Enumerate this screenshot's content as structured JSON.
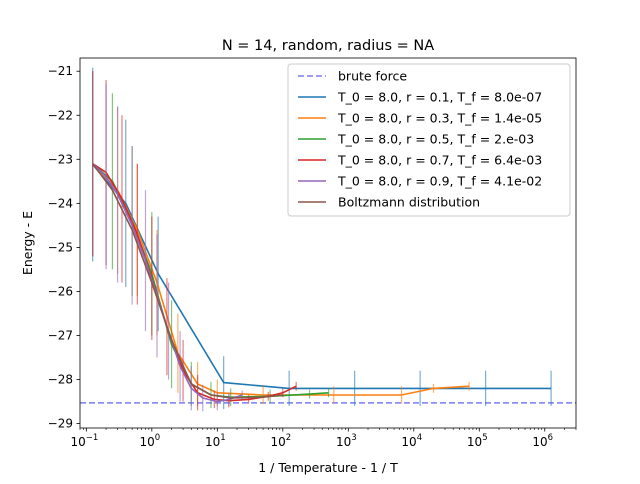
{
  "chart_data": {
    "type": "line",
    "title": "N = 14, random, radius = NA",
    "xlabel": "1 / Temperature - 1 / T",
    "ylabel": "Energy - E",
    "xscale": "log",
    "xlim": [
      0.08,
      3000000
    ],
    "ylim": [
      -29.1,
      -20.7
    ],
    "x_ticks": [
      {
        "value": 0.1,
        "base": "10",
        "exp": "−1"
      },
      {
        "value": 1,
        "base": "10",
        "exp": "0"
      },
      {
        "value": 10,
        "base": "10",
        "exp": "1"
      },
      {
        "value": 100,
        "base": "10",
        "exp": "2"
      },
      {
        "value": 1000,
        "base": "10",
        "exp": "3"
      },
      {
        "value": 10000,
        "base": "10",
        "exp": "4"
      },
      {
        "value": 100000,
        "base": "10",
        "exp": "5"
      },
      {
        "value": 1000000,
        "base": "10",
        "exp": "6"
      }
    ],
    "y_ticks": [
      {
        "value": -21,
        "label": "−21"
      },
      {
        "value": -22,
        "label": "−22"
      },
      {
        "value": -23,
        "label": "−23"
      },
      {
        "value": -24,
        "label": "−24"
      },
      {
        "value": -25,
        "label": "−25"
      },
      {
        "value": -26,
        "label": "−26"
      },
      {
        "value": -27,
        "label": "−27"
      },
      {
        "value": -28,
        "label": "−28"
      },
      {
        "value": -29,
        "label": "−29"
      }
    ],
    "legend_position": "top-right",
    "brute_force": {
      "name": "brute force",
      "y": -28.53,
      "color": "#7b7bf5"
    },
    "series": [
      {
        "name": "T_0 = 8.0, r = 0.1, T_f = 8.0e-07",
        "color": "#1f77b4",
        "points": [
          [
            0.125,
            -23.12
          ],
          [
            0.4,
            -24.0
          ],
          [
            1.25,
            -25.6
          ],
          [
            12.5,
            -28.07
          ],
          [
            125,
            -28.2
          ],
          [
            1250,
            -28.2
          ],
          [
            12500,
            -28.2
          ],
          [
            125000,
            -28.2
          ],
          [
            1250000,
            -28.2
          ]
        ],
        "errors": [
          2.2,
          1.9,
          1.3,
          0.6,
          0.4,
          0.4,
          0.4,
          0.4,
          0.4
        ]
      },
      {
        "name": "T_0 = 8.0, r = 0.3, T_f = 1.4e-05",
        "color": "#ff7f0e",
        "points": [
          [
            0.125,
            -23.1
          ],
          [
            0.3,
            -23.7
          ],
          [
            0.6,
            -24.6
          ],
          [
            1.2,
            -25.8
          ],
          [
            2.5,
            -27.4
          ],
          [
            5,
            -28.1
          ],
          [
            10,
            -28.3
          ],
          [
            50,
            -28.35
          ],
          [
            600,
            -28.35
          ],
          [
            6500,
            -28.35
          ],
          [
            20000,
            -28.2
          ],
          [
            70000,
            -28.15
          ]
        ],
        "errors": [
          2.1,
          1.9,
          1.5,
          1.2,
          0.9,
          0.5,
          0.3,
          0.2,
          0.2,
          0.2,
          0.1,
          0.1
        ]
      },
      {
        "name": "T_0 = 8.0, r = 0.5, T_f = 2.e-03",
        "color": "#2ca02c",
        "points": [
          [
            0.125,
            -23.1
          ],
          [
            0.25,
            -23.5
          ],
          [
            0.5,
            -24.4
          ],
          [
            1,
            -25.6
          ],
          [
            2,
            -27.2
          ],
          [
            4,
            -28.1
          ],
          [
            8,
            -28.35
          ],
          [
            16,
            -28.4
          ],
          [
            64,
            -28.38
          ],
          [
            256,
            -28.33
          ],
          [
            500,
            -28.3
          ]
        ],
        "errors": [
          2.1,
          2.0,
          1.7,
          1.4,
          1.0,
          0.5,
          0.3,
          0.2,
          0.15,
          0.1,
          0.1
        ]
      },
      {
        "name": "T_0 = 8.0, r = 0.7, T_f = 6.4e-03",
        "color": "#d62728",
        "points": [
          [
            0.125,
            -23.1
          ],
          [
            0.2,
            -23.3
          ],
          [
            0.35,
            -23.9
          ],
          [
            0.6,
            -24.7
          ],
          [
            1,
            -25.7
          ],
          [
            1.7,
            -26.8
          ],
          [
            3,
            -27.8
          ],
          [
            5,
            -28.3
          ],
          [
            9,
            -28.45
          ],
          [
            15,
            -28.48
          ],
          [
            30,
            -28.45
          ],
          [
            60,
            -28.38
          ],
          [
            100,
            -28.3
          ],
          [
            160,
            -28.15
          ]
        ],
        "errors": [
          2.1,
          2.1,
          1.9,
          1.6,
          1.4,
          1.1,
          0.7,
          0.4,
          0.2,
          0.15,
          0.1,
          0.1,
          0.1,
          0.1
        ]
      },
      {
        "name": "T_0 = 8.0, r = 0.9, T_f = 4.1e-02",
        "color": "#9467bd",
        "points": [
          [
            0.125,
            -23.1
          ],
          [
            0.2,
            -23.4
          ],
          [
            0.3,
            -23.8
          ],
          [
            0.5,
            -24.5
          ],
          [
            0.8,
            -25.3
          ],
          [
            1.2,
            -26.1
          ],
          [
            1.8,
            -26.9
          ],
          [
            2.7,
            -27.7
          ],
          [
            4,
            -28.2
          ],
          [
            6,
            -28.42
          ],
          [
            10,
            -28.5
          ],
          [
            15,
            -28.45
          ],
          [
            24,
            -28.35
          ]
        ],
        "errors": [
          2.1,
          2.1,
          2.0,
          1.8,
          1.6,
          1.4,
          1.1,
          0.8,
          0.5,
          0.3,
          0.2,
          0.15,
          0.1
        ]
      },
      {
        "name": "Boltzmann distribution",
        "color": "#8c564b",
        "points": [
          [
            0.125,
            -23.1
          ],
          [
            0.25,
            -23.7
          ],
          [
            0.5,
            -24.6
          ],
          [
            1,
            -25.8
          ],
          [
            2,
            -27.1
          ],
          [
            4,
            -28.1
          ],
          [
            8,
            -28.35
          ],
          [
            16,
            -28.42
          ],
          [
            50,
            -28.4
          ],
          [
            100,
            -28.35
          ]
        ],
        "errors": []
      }
    ]
  }
}
